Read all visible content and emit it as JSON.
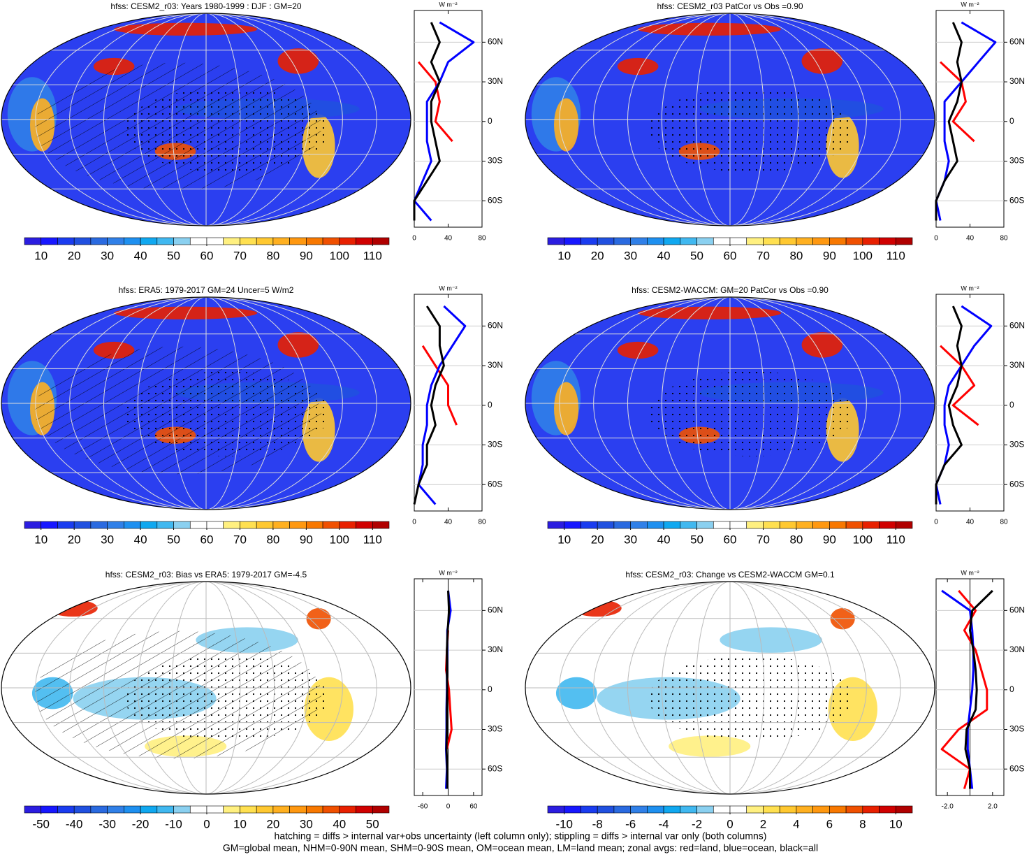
{
  "chart_data": [
    {
      "type": "map",
      "title": "hfss: CESM2_r03: Years 1980-1999 : DJF : GM=20",
      "background": "#2b3ff0",
      "clim": [
        5,
        115
      ],
      "colors": [
        "#2b1de0",
        "#1717ff",
        "#1a3cf0",
        "#2050e0",
        "#2a6ae0",
        "#3080e8",
        "#1e90f0",
        "#10a8f0",
        "#40b8f0",
        "#8ad0f0",
        "#ffffff",
        "#ffffff",
        "#fff080",
        "#ffe050",
        "#ffc830",
        "#ffb020",
        "#ff9810",
        "#f87800",
        "#f05000",
        "#e82000",
        "#d00000",
        "#b00000"
      ],
      "ticks": [
        10,
        20,
        30,
        40,
        50,
        60,
        70,
        80,
        90,
        100,
        110
      ]
    },
    {
      "type": "line",
      "unit": "W m⁻²",
      "lat": [
        75,
        60,
        45,
        30,
        15,
        0,
        -15,
        -30,
        -45,
        -60,
        -75
      ],
      "xlim": [
        0,
        80
      ],
      "xticks": [
        0,
        40,
        80
      ],
      "ylim": [
        -80,
        84
      ],
      "yticks": [
        {
          "value": 60,
          "label": "60N"
        },
        {
          "value": 30,
          "label": "30N"
        },
        0,
        {
          "value": -30,
          "label": "30S"
        },
        {
          "value": -60,
          "label": "60S"
        }
      ],
      "series": [
        {
          "color": "#ff0000",
          "values": [
            null,
            null,
            5,
            25,
            30,
            25,
            45,
            null,
            null,
            null,
            0
          ]
        },
        {
          "color": "#0000ff",
          "values": [
            30,
            70,
            40,
            30,
            15,
            15,
            15,
            20,
            10,
            0,
            20
          ]
        },
        {
          "color": "#000000",
          "values": [
            20,
            30,
            20,
            30,
            20,
            20,
            25,
            30,
            15,
            0,
            0
          ]
        }
      ]
    },
    {
      "type": "map",
      "title": "hfss: CESM2_r03 PatCor vs Obs =0.90",
      "background": "#2b3ff0",
      "clim": [
        5,
        115
      ],
      "colors": [
        "#2b1de0",
        "#1717ff",
        "#1a3cf0",
        "#2050e0",
        "#2a6ae0",
        "#3080e8",
        "#1e90f0",
        "#10a8f0",
        "#40b8f0",
        "#8ad0f0",
        "#ffffff",
        "#ffffff",
        "#fff080",
        "#ffe050",
        "#ffc830",
        "#ffb020",
        "#ff9810",
        "#f87800",
        "#f05000",
        "#e82000",
        "#d00000",
        "#b00000"
      ],
      "ticks": [
        10,
        20,
        30,
        40,
        50,
        60,
        70,
        80,
        90,
        100,
        110
      ]
    },
    {
      "type": "line",
      "unit": "W m⁻²",
      "lat": [
        75,
        60,
        45,
        30,
        15,
        0,
        -15,
        -30,
        -45,
        -60,
        -75
      ],
      "xlim": [
        0,
        80
      ],
      "xticks": [
        0,
        40,
        80
      ],
      "ylim": [
        -80,
        84
      ],
      "yticks": [
        {
          "value": 60,
          "label": "60N"
        },
        {
          "value": 30,
          "label": "30N"
        },
        0,
        {
          "value": -30,
          "label": "30S"
        },
        {
          "value": -60,
          "label": "60S"
        }
      ],
      "series": [
        {
          "color": "#ff0000",
          "values": [
            null,
            null,
            5,
            30,
            35,
            20,
            45,
            null,
            null,
            null,
            0
          ]
        },
        {
          "color": "#0000ff",
          "values": [
            30,
            70,
            50,
            30,
            10,
            10,
            10,
            15,
            10,
            0,
            5
          ]
        },
        {
          "color": "#000000",
          "values": [
            20,
            30,
            25,
            30,
            25,
            15,
            20,
            25,
            10,
            0,
            0
          ]
        }
      ]
    },
    {
      "type": "map",
      "title": "hfss: ERA5: 1979-2017 GM=24 Uncer=5 W/m2",
      "background": "#2b3ff0",
      "clim": [
        5,
        115
      ],
      "colors": [
        "#2b1de0",
        "#1717ff",
        "#1a3cf0",
        "#2050e0",
        "#2a6ae0",
        "#3080e8",
        "#1e90f0",
        "#10a8f0",
        "#40b8f0",
        "#8ad0f0",
        "#ffffff",
        "#ffffff",
        "#fff080",
        "#ffe050",
        "#ffc830",
        "#ffb020",
        "#ff9810",
        "#f87800",
        "#f05000",
        "#e82000",
        "#d00000",
        "#b00000"
      ],
      "ticks": [
        10,
        20,
        30,
        40,
        50,
        60,
        70,
        80,
        90,
        100,
        110
      ]
    },
    {
      "type": "line",
      "unit": "W m⁻²",
      "lat": [
        75,
        60,
        45,
        30,
        15,
        0,
        -15,
        -30,
        -45,
        -60,
        -75
      ],
      "xlim": [
        0,
        80
      ],
      "xticks": [
        0,
        40,
        80
      ],
      "ylim": [
        -80,
        84
      ],
      "yticks": [
        {
          "value": 60,
          "label": "60N"
        },
        {
          "value": 30,
          "label": "30N"
        },
        0,
        {
          "value": -30,
          "label": "30S"
        },
        {
          "value": -60,
          "label": "60S"
        }
      ],
      "series": [
        {
          "color": "#ff0000",
          "values": [
            null,
            null,
            10,
            25,
            40,
            40,
            50,
            null,
            null,
            null,
            5
          ]
        },
        {
          "color": "#0000ff",
          "values": [
            35,
            60,
            45,
            30,
            20,
            15,
            15,
            10,
            10,
            5,
            25
          ]
        },
        {
          "color": "#000000",
          "values": [
            15,
            30,
            30,
            35,
            25,
            20,
            25,
            15,
            15,
            5,
            0
          ]
        }
      ]
    },
    {
      "type": "map",
      "title": "hfss: CESM2-WACCM: GM=20 PatCor vs Obs =0.90",
      "background": "#2b3ff0",
      "clim": [
        5,
        115
      ],
      "colors": [
        "#2b1de0",
        "#1717ff",
        "#1a3cf0",
        "#2050e0",
        "#2a6ae0",
        "#3080e8",
        "#1e90f0",
        "#10a8f0",
        "#40b8f0",
        "#8ad0f0",
        "#ffffff",
        "#ffffff",
        "#fff080",
        "#ffe050",
        "#ffc830",
        "#ffb020",
        "#ff9810",
        "#f87800",
        "#f05000",
        "#e82000",
        "#d00000",
        "#b00000"
      ],
      "ticks": [
        10,
        20,
        30,
        40,
        50,
        60,
        70,
        80,
        90,
        100,
        110
      ]
    },
    {
      "type": "line",
      "unit": "W m⁻²",
      "lat": [
        75,
        60,
        45,
        30,
        15,
        0,
        -15,
        -30,
        -45,
        -60,
        -75
      ],
      "xlim": [
        0,
        80
      ],
      "xticks": [
        0,
        40,
        80
      ],
      "ylim": [
        -80,
        84
      ],
      "yticks": [
        {
          "value": 60,
          "label": "60N"
        },
        {
          "value": 30,
          "label": "30N"
        },
        0,
        {
          "value": -30,
          "label": "30S"
        },
        {
          "value": -60,
          "label": "60S"
        }
      ],
      "series": [
        {
          "color": "#ff0000",
          "values": [
            null,
            null,
            5,
            30,
            45,
            20,
            50,
            null,
            null,
            null,
            0
          ]
        },
        {
          "color": "#0000ff",
          "values": [
            30,
            65,
            45,
            30,
            15,
            10,
            10,
            15,
            10,
            0,
            5
          ]
        },
        {
          "color": "#000000",
          "values": [
            20,
            30,
            25,
            30,
            25,
            15,
            20,
            30,
            10,
            0,
            0
          ]
        }
      ]
    },
    {
      "type": "map",
      "title": "hfss: CESM2_r03: Bias vs ERA5: 1979-2017 GM=-4.5",
      "background": "#ffffff",
      "clim": [
        -55,
        55
      ],
      "colors": [
        "#2b1de0",
        "#1717ff",
        "#1a3cf0",
        "#2050e0",
        "#2a6ae0",
        "#3080e8",
        "#1e90f0",
        "#10a8f0",
        "#40b8f0",
        "#8ad0f0",
        "#ffffff",
        "#ffffff",
        "#fff080",
        "#ffe050",
        "#ffc830",
        "#ffb020",
        "#ff9810",
        "#f87800",
        "#f05000",
        "#e82000",
        "#d00000",
        "#b00000"
      ],
      "ticks": [
        -50,
        -40,
        -30,
        -20,
        -10,
        0,
        10,
        20,
        30,
        40,
        50
      ]
    },
    {
      "type": "line",
      "unit": "W m⁻²",
      "lat": [
        75,
        60,
        45,
        30,
        15,
        0,
        -15,
        -30,
        -45,
        -60,
        -75
      ],
      "xlim": [
        -80,
        80
      ],
      "xticks": [
        -60,
        0,
        60
      ],
      "ylim": [
        -80,
        84
      ],
      "yticks": [
        {
          "value": 60,
          "label": "60N"
        },
        {
          "value": 30,
          "label": "30N"
        },
        0,
        {
          "value": -30,
          "label": "30S"
        },
        {
          "value": -60,
          "label": "60S"
        }
      ],
      "series": [
        {
          "color": "#ff0000",
          "values": [
            null,
            null,
            0,
            -3,
            -5,
            2,
            5,
            8,
            -3,
            null,
            0
          ]
        },
        {
          "color": "#0000ff",
          "values": [
            0,
            6,
            -2,
            -2,
            -3,
            -3,
            -4,
            -4,
            -5,
            -3,
            -5
          ]
        },
        {
          "color": "#000000",
          "values": [
            0,
            2,
            -1,
            -3,
            -3,
            -2,
            -3,
            -3,
            -4,
            -2,
            -2
          ]
        }
      ]
    },
    {
      "type": "map",
      "title": "hfss: CESM2_r03: Change vs CESM2-WACCM GM=0.1",
      "background": "#ffffff",
      "clim": [
        -11,
        11
      ],
      "colors": [
        "#2b1de0",
        "#1717ff",
        "#1a3cf0",
        "#2050e0",
        "#2a6ae0",
        "#3080e8",
        "#1e90f0",
        "#10a8f0",
        "#40b8f0",
        "#8ad0f0",
        "#ffffff",
        "#ffffff",
        "#fff080",
        "#ffe050",
        "#ffc830",
        "#ffb020",
        "#ff9810",
        "#f87800",
        "#f05000",
        "#e82000",
        "#d00000",
        "#b00000"
      ],
      "ticks": [
        -10,
        -8,
        -6,
        -4,
        -2,
        0,
        2,
        4,
        6,
        8,
        10
      ]
    },
    {
      "type": "line",
      "unit": "W m⁻²",
      "lat": [
        75,
        60,
        45,
        30,
        15,
        0,
        -15,
        -30,
        -45,
        -60,
        -75
      ],
      "xlim": [
        -3,
        3
      ],
      "xticks": [
        {
          "value": -2,
          "label": "-2.0"
        },
        {
          "value": 2,
          "label": "2.0"
        }
      ],
      "ylim": [
        -80,
        84
      ],
      "yticks": [
        {
          "value": 60,
          "label": "60N"
        },
        {
          "value": 30,
          "label": "30N"
        },
        0,
        {
          "value": -30,
          "label": "30S"
        },
        {
          "value": -60,
          "label": "60S"
        }
      ],
      "series": [
        {
          "color": "#ff0000",
          "values": [
            -1,
            0.5,
            -0.5,
            0.5,
            1,
            1.5,
            1.5,
            -1,
            -2.5,
            0,
            -0.5
          ]
        },
        {
          "color": "#0000ff",
          "values": [
            -2.5,
            0,
            0.2,
            0.3,
            0.3,
            0.2,
            0,
            -0.2,
            -0.2,
            0,
            0.2
          ]
        },
        {
          "color": "#000000",
          "values": [
            2,
            0.2,
            0,
            0.3,
            0.5,
            0.6,
            0.5,
            -0.3,
            -0.4,
            0,
            0
          ]
        }
      ]
    }
  ],
  "notes": [
    "hatching = diffs > internal var+obs uncertainty (left column only); stippling = diffs > internal var only (both columns)",
    "GM=global mean, NHM=0-90N mean, SHM=0-90S mean, OM=ocean mean, LM=land mean; zonal avgs: red=land, blue=ocean, black=all"
  ]
}
